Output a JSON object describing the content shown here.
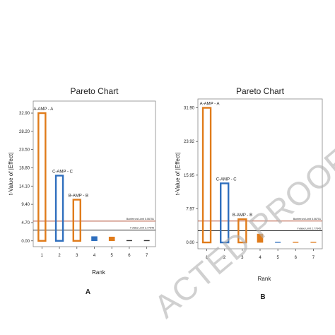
{
  "watermark": "ACTED PROOF",
  "chart_data": [
    {
      "panel_label": "A",
      "type": "bar",
      "title": "Pareto Chart",
      "xlabel": "Rank",
      "ylabel": "t-Value of |Effect|",
      "categories": [
        "1",
        "2",
        "3",
        "4",
        "5",
        "6",
        "7"
      ],
      "yticks": [
        "0.00",
        "4.70",
        "9.40",
        "14.10",
        "18.80",
        "23.50",
        "28.20",
        "32.90"
      ],
      "ylim": [
        -1.5,
        36.0
      ],
      "values": [
        32.9,
        16.8,
        10.6,
        1.1,
        1.0,
        0.15,
        0.1
      ],
      "bar_labels": [
        "A-AMP - A",
        "C-AMP - C",
        "B-AMP - B",
        "",
        "",
        "",
        ""
      ],
      "bar_colors": [
        "#e07b1a",
        "#2f6fbe",
        "#e07b1a",
        "#2f6fbe",
        "#e07b1a",
        "#333333",
        "#333333"
      ],
      "reference_lines": [
        {
          "label": "Bonferroni Limit 5.06751",
          "value": 5.07,
          "color": "#b5533a"
        },
        {
          "label": "t-Value Limit 2.77645",
          "value": 2.78,
          "color": "#222222"
        }
      ]
    },
    {
      "panel_label": "B",
      "type": "bar",
      "title": "Pareto Chart",
      "xlabel": "Rank",
      "ylabel": "t-Value of |Effect|",
      "categories": [
        "1",
        "2",
        "3",
        "4",
        "5",
        "6",
        "7"
      ],
      "yticks": [
        "0.00",
        "7.97",
        "15.95",
        "23.92",
        "31.90"
      ],
      "ylim": [
        -1.5,
        34.0
      ],
      "values": [
        31.9,
        14.0,
        5.5,
        2.0,
        0.3,
        0.2,
        0.2
      ],
      "bar_labels": [
        "A-AMP - A",
        "C-AMP - C",
        "B-AMP - B",
        "",
        "",
        "",
        ""
      ],
      "bar_colors": [
        "#e07b1a",
        "#2f6fbe",
        "#e07b1a",
        "#e07b1a",
        "#2f6fbe",
        "#e07b1a",
        "#e07b1a"
      ],
      "reference_lines": [
        {
          "label": "Bonferroni Limit 5.06751",
          "value": 5.07,
          "color": "#b5533a"
        },
        {
          "label": "t-Value Limit 2.77645",
          "value": 2.78,
          "color": "#222222"
        }
      ]
    }
  ]
}
